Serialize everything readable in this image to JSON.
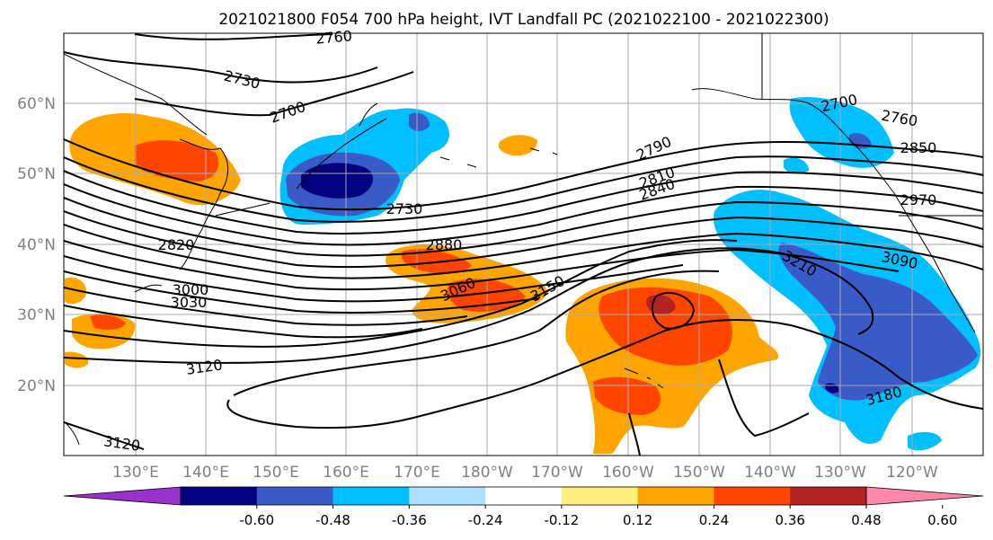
{
  "title": "2021021800 F054 700 hPa height, IVT Landfall PC (2021022100 - 2021022300)",
  "map": {
    "lat_labels": [
      "60°N",
      "50°N",
      "40°N",
      "30°N",
      "20°N"
    ],
    "lon_labels": [
      "130°E",
      "140°E",
      "150°E",
      "160°E",
      "170°E",
      "180°W",
      "170°W",
      "160°W",
      "150°W",
      "140°W",
      "130°W",
      "120°W"
    ],
    "contour_labels": [
      "2760",
      "2730",
      "2700",
      "2790",
      "2810",
      "2840",
      "2730",
      "2700",
      "2760",
      "2850",
      "2970",
      "2820",
      "2880",
      "3000",
      "3030",
      "3060",
      "3150",
      "3210",
      "3090",
      "3120",
      "3180",
      "3120"
    ]
  },
  "colorbar": {
    "colors": [
      "#9932cc",
      "#000080",
      "#3a5bc7",
      "#00bfff",
      "#b0e0ff",
      "#ffffff",
      "#fff080",
      "#ffa500",
      "#ff4500",
      "#b22222",
      "#ff88aa"
    ],
    "tick_labels": [
      "-0.60",
      "-0.48",
      "-0.36",
      "-0.24",
      "-0.12",
      "0.12",
      "0.24",
      "0.36",
      "0.48",
      "0.60"
    ]
  }
}
